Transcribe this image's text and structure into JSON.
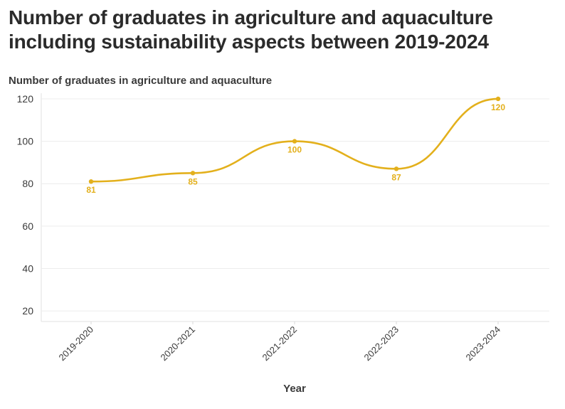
{
  "title": "Number of graduates in agriculture and aquaculture including sustainability aspects between 2019-2024",
  "subtitle": "Number of graduates in agriculture and aquaculture",
  "colors": {
    "series": "#e3b01c",
    "grid": "#ececec",
    "text": "#3a3a3a"
  },
  "chart_data": {
    "type": "line",
    "title": "Number of graduates in agriculture and aquaculture including sustainability aspects between 2019-2024",
    "subtitle": "Number of graduates in agriculture and aquaculture",
    "xlabel": "Year",
    "ylabel": "Number of graduates in agriculture and aquaculture",
    "categories": [
      "2019-2020",
      "2020-2021",
      "2021-2022",
      "2022-2023",
      "2023-2024"
    ],
    "series": [
      {
        "name": "Number of graduates in agriculture and aquaculture",
        "values": [
          81,
          85,
          100,
          87,
          120
        ]
      }
    ],
    "data_labels": [
      "81",
      "85",
      "100",
      "87",
      "120"
    ],
    "yticks": [
      20,
      40,
      60,
      80,
      100,
      120
    ],
    "ylim": [
      15,
      122
    ],
    "grid": true,
    "smooth": true
  }
}
